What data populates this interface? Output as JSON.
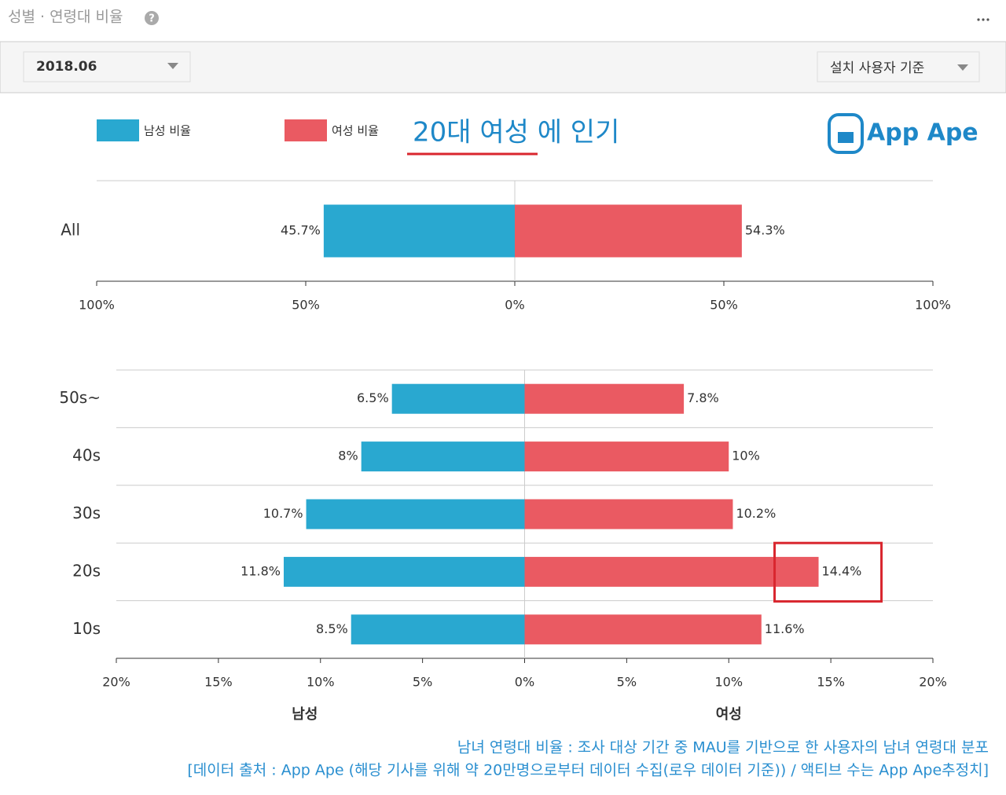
{
  "header": {
    "title": "성별 · 연령대 비율"
  },
  "controls": {
    "period": "2018.06",
    "basis": "설치 사용자 기준"
  },
  "annotation": "20대 여성 에 인기",
  "logo": "App Ape",
  "chart_data": [
    {
      "type": "diverging-bar",
      "categories": [
        "All"
      ],
      "series": [
        {
          "name": "남성 비율",
          "color": "#29a8d0",
          "side": "left",
          "values": [
            45.7
          ],
          "value_labels": [
            "45.7%"
          ]
        },
        {
          "name": "여성 비율",
          "color": "#ea5a62",
          "side": "right",
          "values": [
            54.3
          ],
          "value_labels": [
            "54.3%"
          ]
        }
      ],
      "xlim": [
        -100,
        100
      ],
      "xticks": [
        {
          "value": -100,
          "label": "100%"
        },
        {
          "value": -50,
          "label": "50%"
        },
        {
          "value": 0,
          "label": "0%"
        },
        {
          "value": 50,
          "label": "50%"
        },
        {
          "value": 100,
          "label": "100%"
        }
      ]
    },
    {
      "type": "diverging-bar",
      "categories": [
        "50s~",
        "40s",
        "30s",
        "20s",
        "10s"
      ],
      "series": [
        {
          "name": "남성",
          "color": "#29a8d0",
          "side": "left",
          "values": [
            6.5,
            8,
            10.7,
            11.8,
            8.5
          ],
          "value_labels": [
            "6.5%",
            "8%",
            "10.7%",
            "11.8%",
            "8.5%"
          ]
        },
        {
          "name": "여성",
          "color": "#ea5a62",
          "side": "right",
          "values": [
            7.8,
            10,
            10.2,
            14.4,
            11.6
          ],
          "value_labels": [
            "7.8%",
            "10%",
            "10.2%",
            "14.4%",
            "11.6%"
          ]
        }
      ],
      "xlim": [
        -20,
        20
      ],
      "xticks": [
        {
          "value": -20,
          "label": "20%"
        },
        {
          "value": -15,
          "label": "15%"
        },
        {
          "value": -10,
          "label": "10%"
        },
        {
          "value": -5,
          "label": "5%"
        },
        {
          "value": 0,
          "label": "0%"
        },
        {
          "value": 5,
          "label": "5%"
        },
        {
          "value": 10,
          "label": "10%"
        },
        {
          "value": 15,
          "label": "15%"
        },
        {
          "value": 20,
          "label": "20%"
        }
      ]
    }
  ],
  "footer": [
    "남녀 연령대 비율 : 조사 대상 기간 중 MAU를 기반으로 한 사용자의 남녀 연령대 분포",
    "[데이터 출처 : App Ape (해당 기사를 위해 약 20만명으로부터 데이터 수집(로우 데이터 기준)) / 액티브 수는 App Ape추정치]"
  ]
}
